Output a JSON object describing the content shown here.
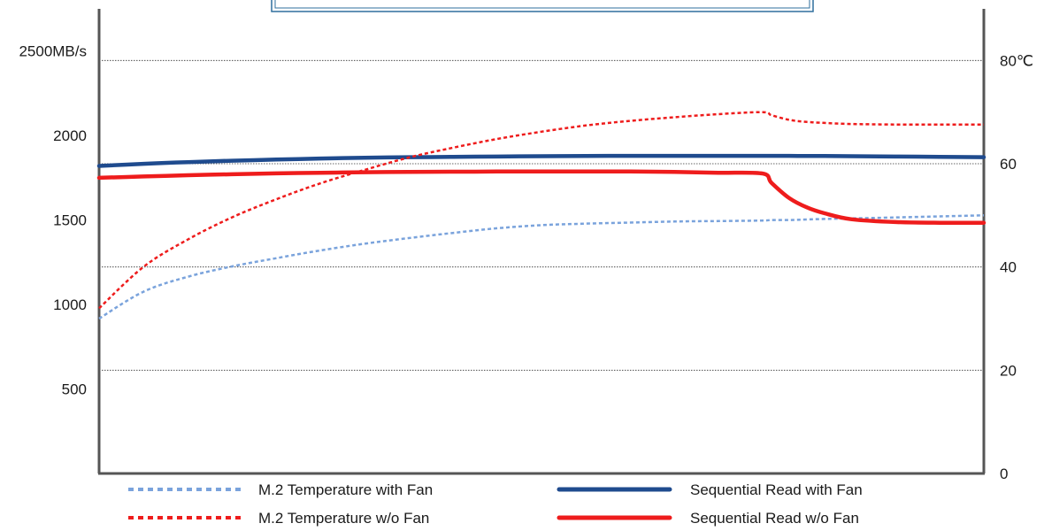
{
  "chart_data": {
    "type": "line",
    "title": "",
    "x": [
      0,
      5,
      10,
      15,
      20,
      25,
      30,
      35,
      40,
      45,
      50,
      55,
      60,
      65,
      70,
      75,
      76,
      78,
      80,
      82,
      85,
      90,
      95,
      100
    ],
    "left_axis": {
      "ylim": [
        0,
        2750
      ],
      "ticks": [
        500,
        1000,
        1500,
        2000,
        2500
      ],
      "tick_labels": [
        "500",
        "1000",
        "1500",
        "2000",
        "2500MB/s"
      ]
    },
    "right_axis": {
      "ylim": [
        0,
        90
      ],
      "ticks": [
        0,
        20,
        40,
        60,
        80
      ],
      "tick_labels": [
        "0",
        "20",
        "40",
        "60",
        "80℃"
      ]
    },
    "grid": true,
    "series": [
      {
        "name": "M.2 Temperature with Fan",
        "axis": "right",
        "style": "dotted",
        "color": "#7aa3dc",
        "values": [
          30,
          35.2,
          38.1,
          40.1,
          41.7,
          43.2,
          44.5,
          45.6,
          46.6,
          47.5,
          48.1,
          48.4,
          48.6,
          48.8,
          48.9,
          49.0,
          49.1,
          49.1,
          49.2,
          49.3,
          49.4,
          49.6,
          49.8,
          50.0
        ]
      },
      {
        "name": "Sequential Read with Fan",
        "axis": "left",
        "style": "solid",
        "color": "#1f4b8e",
        "values": [
          1820,
          1833,
          1843,
          1851,
          1858,
          1864,
          1869,
          1872,
          1874,
          1876,
          1878,
          1879,
          1880,
          1880,
          1880,
          1880,
          1880,
          1880,
          1879,
          1879,
          1878,
          1876,
          1874,
          1872
        ]
      },
      {
        "name": "M.2 Temperature w/o Fan",
        "axis": "right",
        "style": "dotted",
        "color": "#ee1c1c",
        "values": [
          32,
          40.0,
          45.3,
          49.6,
          53.1,
          56.2,
          58.8,
          61.2,
          63.1,
          64.8,
          66.2,
          67.4,
          68.3,
          69.0,
          69.6,
          70.0,
          69.4,
          68.5,
          68.1,
          67.9,
          67.7,
          67.6,
          67.6,
          67.6
        ]
      },
      {
        "name": "Sequential Read w/o Fan",
        "axis": "left",
        "style": "solid",
        "color": "#ee1c1c",
        "values": [
          1750,
          1758,
          1765,
          1771,
          1776,
          1780,
          1783,
          1785,
          1786,
          1787,
          1787,
          1787,
          1787,
          1785,
          1780,
          1775,
          1720,
          1630,
          1575,
          1540,
          1505,
          1488,
          1484,
          1484
        ]
      }
    ],
    "legend": {
      "position": "bottom",
      "entries": [
        {
          "label": "M.2 Temperature with Fan",
          "style": "dotted",
          "color": "#7aa3dc"
        },
        {
          "label": "Sequential Read with Fan",
          "style": "solid",
          "color": "#1f4b8e"
        },
        {
          "label": "M.2 Temperature w/o Fan",
          "style": "dotted",
          "color": "#ee1c1c"
        },
        {
          "label": "Sequential Read w/o Fan",
          "style": "solid",
          "color": "#ee1c1c"
        }
      ]
    }
  }
}
